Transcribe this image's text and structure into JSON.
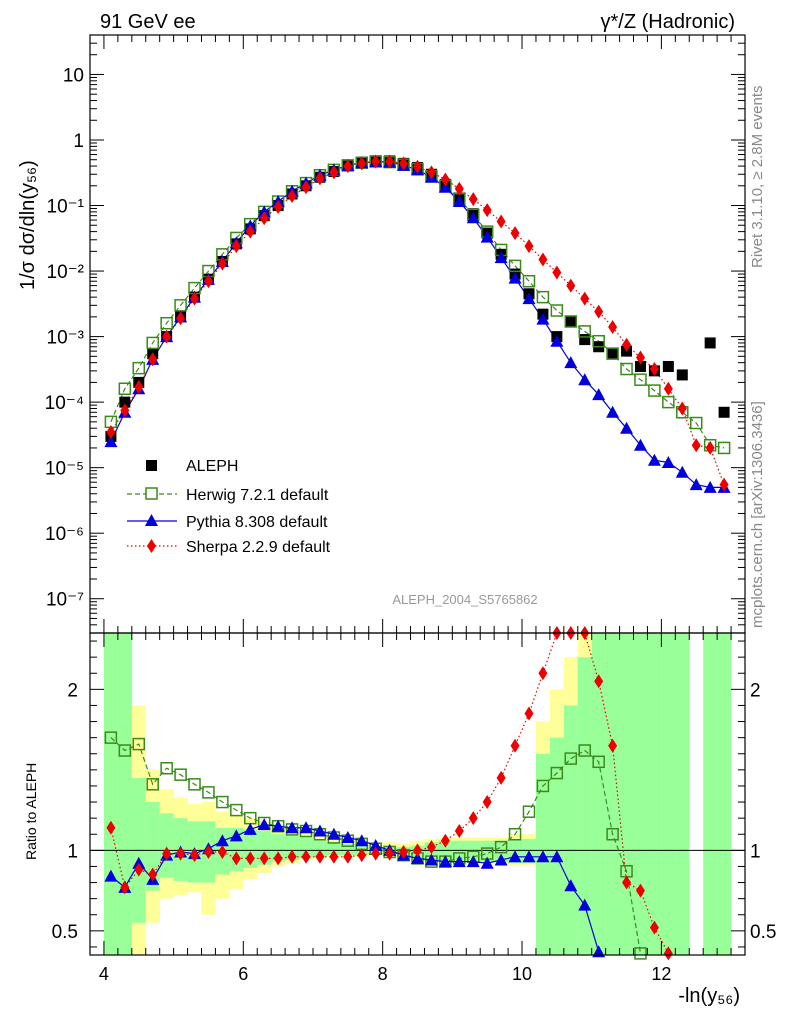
{
  "header": {
    "left_title": "91 GeV ee",
    "right_title": "γ*/Z (Hadronic)"
  },
  "side_labels": {
    "rivet": "Rivet 3.1.10, ≥ 2.8M events",
    "mcplots": "mcplots.cern.ch [arXiv:1306.3436]"
  },
  "watermark": "ALEPH_2004_S5765862",
  "colors": {
    "aleph": "#000000",
    "herwig": "#3a8a1a",
    "pythia": "#0000dd",
    "sherpa": "#ee0000",
    "band_inner": "#99ff99",
    "band_outer": "#ffff99"
  },
  "chart_data": [
    {
      "type": "scatter",
      "ylabel": "1/σ  dσ/dln(y₅₆)",
      "xlim": [
        3.8,
        13.2
      ],
      "ylim": [
        3e-08,
        40
      ],
      "log_y": true,
      "x_ticks": [
        4,
        6,
        8,
        10,
        12
      ],
      "y_tick_labels": [
        "10",
        "1",
        "10⁻¹",
        "10⁻²",
        "10⁻³",
        "10⁻⁴",
        "10⁻⁵",
        "10⁻⁶",
        "10⁻⁷"
      ],
      "legend_position": "bottom-left",
      "series": [
        {
          "name": "ALEPH",
          "style": "black-square",
          "x": [
            4.1,
            4.3,
            4.5,
            4.7,
            4.9,
            5.1,
            5.3,
            5.5,
            5.7,
            5.9,
            6.1,
            6.3,
            6.5,
            6.7,
            6.9,
            7.1,
            7.3,
            7.5,
            7.7,
            7.9,
            8.1,
            8.3,
            8.5,
            8.7,
            8.9,
            9.1,
            9.3,
            9.5,
            9.7,
            9.9,
            10.1,
            10.3,
            10.5,
            10.7,
            10.9,
            11.1,
            11.3,
            11.5,
            11.7,
            11.9,
            12.1,
            12.3,
            12.7,
            12.9
          ],
          "y": [
            3e-05,
            0.0001,
            0.0002,
            0.00055,
            0.001,
            0.002,
            0.004,
            0.0075,
            0.014,
            0.026,
            0.044,
            0.07,
            0.1,
            0.15,
            0.2,
            0.27,
            0.33,
            0.4,
            0.45,
            0.48,
            0.48,
            0.44,
            0.38,
            0.3,
            0.21,
            0.13,
            0.075,
            0.038,
            0.018,
            0.009,
            0.0045,
            0.0022,
            0.001,
            0.0017,
            0.0009,
            0.0007,
            0.00055,
            0.0006,
            0.00035,
            0.0003,
            0.00035,
            0.00026,
            0.0008,
            7e-05
          ]
        },
        {
          "name": "Herwig 7.2.1 default",
          "style": "green-open-square-dashed",
          "x": [
            4.1,
            4.3,
            4.5,
            4.7,
            4.9,
            5.1,
            5.3,
            5.5,
            5.7,
            5.9,
            6.1,
            6.3,
            6.5,
            6.7,
            6.9,
            7.1,
            7.3,
            7.5,
            7.7,
            7.9,
            8.1,
            8.3,
            8.5,
            8.7,
            8.9,
            9.1,
            9.3,
            9.5,
            9.7,
            9.9,
            10.1,
            10.3,
            10.5,
            10.7,
            10.9,
            11.1,
            11.3,
            11.5,
            11.7,
            11.9,
            12.1,
            12.3,
            12.5,
            12.7,
            12.9
          ],
          "y": [
            5e-05,
            0.00016,
            0.00033,
            0.0008,
            0.0016,
            0.003,
            0.0055,
            0.01,
            0.018,
            0.032,
            0.052,
            0.08,
            0.115,
            0.165,
            0.22,
            0.29,
            0.35,
            0.41,
            0.45,
            0.47,
            0.46,
            0.42,
            0.36,
            0.28,
            0.2,
            0.125,
            0.072,
            0.04,
            0.021,
            0.012,
            0.007,
            0.004,
            0.0025,
            0.0017,
            0.0012,
            0.00085,
            0.00055,
            0.00032,
            0.00022,
            0.00015,
            0.0001,
            7e-05,
            4.8e-05,
            2.2e-05,
            2e-05
          ]
        },
        {
          "name": "Pythia 8.308 default",
          "style": "blue-triangle-solid",
          "x": [
            4.1,
            4.3,
            4.5,
            4.7,
            4.9,
            5.1,
            5.3,
            5.5,
            5.7,
            5.9,
            6.1,
            6.3,
            6.5,
            6.7,
            6.9,
            7.1,
            7.3,
            7.5,
            7.7,
            7.9,
            8.1,
            8.3,
            8.5,
            8.7,
            8.9,
            9.1,
            9.3,
            9.5,
            9.7,
            9.9,
            10.1,
            10.3,
            10.5,
            10.7,
            10.9,
            11.1,
            11.3,
            11.5,
            11.7,
            11.9,
            12.1,
            12.3,
            12.5,
            12.7,
            12.9
          ],
          "y": [
            2.5e-05,
            7e-05,
            0.00016,
            0.00045,
            0.001,
            0.002,
            0.004,
            0.0075,
            0.014,
            0.027,
            0.049,
            0.08,
            0.115,
            0.165,
            0.22,
            0.29,
            0.35,
            0.41,
            0.45,
            0.47,
            0.46,
            0.41,
            0.35,
            0.27,
            0.19,
            0.115,
            0.065,
            0.033,
            0.016,
            0.0078,
            0.0038,
            0.00185,
            0.00085,
            0.0004,
            0.00022,
            0.00013,
            7e-05,
            4e-05,
            2.2e-05,
            1.3e-05,
            1.2e-05,
            8.5e-06,
            5.5e-06,
            5e-06,
            5e-06
          ]
        },
        {
          "name": "Sherpa 2.2.9 default",
          "style": "red-diamond-dotted",
          "x": [
            4.1,
            4.3,
            4.5,
            4.7,
            4.9,
            5.1,
            5.3,
            5.5,
            5.7,
            5.9,
            6.1,
            6.3,
            6.5,
            6.7,
            6.9,
            7.1,
            7.3,
            7.5,
            7.7,
            7.9,
            8.1,
            8.3,
            8.5,
            8.7,
            8.9,
            9.1,
            9.3,
            9.5,
            9.7,
            9.9,
            10.1,
            10.3,
            10.5,
            10.7,
            10.9,
            11.1,
            11.3,
            11.5,
            11.7,
            11.9,
            12.1,
            12.3,
            12.5,
            12.7,
            12.9
          ],
          "y": [
            3.5e-05,
            7.5e-05,
            0.00017,
            0.00045,
            0.001,
            0.0019,
            0.0038,
            0.007,
            0.013,
            0.024,
            0.04,
            0.064,
            0.095,
            0.14,
            0.19,
            0.26,
            0.32,
            0.4,
            0.44,
            0.47,
            0.47,
            0.44,
            0.39,
            0.32,
            0.25,
            0.18,
            0.125,
            0.085,
            0.057,
            0.038,
            0.024,
            0.015,
            0.0095,
            0.006,
            0.0038,
            0.0024,
            0.0014,
            0.00075,
            0.00048,
            0.00032,
            0.00016,
            8e-05,
            2.2e-05,
            2e-05,
            5.5e-06
          ]
        }
      ]
    },
    {
      "type": "line",
      "ylabel": "Ratio to ALEPH",
      "xlabel": "-ln(y₅₆)",
      "xlim": [
        3.8,
        13.2
      ],
      "ylim": [
        0.35,
        2.35
      ],
      "y_ticks": [
        0.5,
        1,
        2
      ],
      "y_tick_labels": [
        "0.5",
        "1",
        "2"
      ],
      "x_ticks": [
        4,
        6,
        8,
        10,
        12
      ],
      "x_tick_labels": [
        "4",
        "6",
        "8",
        "10",
        "12"
      ],
      "bands": {
        "x_edges": [
          4.0,
          4.2,
          4.4,
          4.6,
          4.8,
          5.0,
          5.2,
          5.4,
          5.6,
          5.8,
          6.0,
          6.2,
          6.4,
          6.6,
          6.8,
          7.0,
          7.2,
          7.4,
          7.6,
          7.8,
          8.0,
          8.2,
          8.4,
          8.6,
          8.8,
          9.0,
          9.2,
          9.4,
          9.6,
          9.8,
          10.0,
          10.2,
          10.4,
          10.6,
          10.8,
          11.0,
          11.2,
          11.4,
          11.6,
          11.8,
          12.0,
          12.2,
          12.4,
          12.6,
          12.8,
          13.0
        ],
        "inner_low": [
          0.35,
          0.35,
          0.55,
          0.75,
          0.83,
          0.81,
          0.8,
          0.8,
          0.85,
          0.87,
          0.89,
          0.91,
          0.93,
          0.94,
          0.95,
          0.96,
          0.97,
          0.97,
          0.97,
          0.98,
          0.98,
          0.96,
          0.95,
          0.93,
          0.93,
          0.93,
          0.93,
          0.93,
          0.93,
          0.92,
          0.92,
          0.35,
          0.35,
          0.35,
          0.35,
          0.35,
          0.35,
          0.35,
          0.35,
          0.35,
          0.35,
          0.35,
          null,
          0.35,
          0.35
        ],
        "inner_high": [
          2.35,
          2.35,
          1.45,
          1.3,
          1.23,
          1.2,
          1.18,
          1.18,
          1.14,
          1.14,
          1.13,
          1.12,
          1.1,
          1.09,
          1.08,
          1.06,
          1.05,
          1.04,
          1.03,
          1.02,
          1.02,
          1.02,
          1.03,
          1.05,
          1.06,
          1.06,
          1.06,
          1.06,
          1.06,
          1.07,
          1.07,
          1.6,
          1.7,
          1.9,
          2.2,
          2.35,
          2.35,
          2.35,
          2.35,
          2.35,
          2.35,
          2.35,
          null,
          2.35,
          2.35
        ],
        "outer_low": [
          0.35,
          0.35,
          0.35,
          0.55,
          0.7,
          0.72,
          0.74,
          0.6,
          0.7,
          0.76,
          0.82,
          0.86,
          0.9,
          0.92,
          0.94,
          0.95,
          0.96,
          0.96,
          0.96,
          0.97,
          0.97,
          0.94,
          0.93,
          0.92,
          0.92,
          0.92,
          0.92,
          0.92,
          0.92,
          0.91,
          0.91,
          0.35,
          0.35,
          0.35,
          0.35,
          0.35,
          0.35,
          0.35,
          0.35,
          0.35,
          0.35,
          0.35,
          null,
          0.35,
          0.35
        ],
        "outer_high": [
          2.35,
          2.35,
          1.9,
          1.5,
          1.38,
          1.33,
          1.29,
          1.3,
          1.24,
          1.22,
          1.2,
          1.18,
          1.15,
          1.13,
          1.11,
          1.09,
          1.07,
          1.06,
          1.05,
          1.04,
          1.05,
          1.04,
          1.06,
          1.07,
          1.08,
          1.08,
          1.08,
          1.08,
          1.08,
          1.1,
          1.1,
          1.8,
          2.0,
          2.2,
          2.35,
          2.35,
          2.35,
          2.35,
          2.35,
          2.35,
          2.35,
          2.35,
          null,
          2.35,
          2.35
        ]
      },
      "series": [
        {
          "name": "Herwig 7.2.1 default",
          "x": [
            4.1,
            4.3,
            4.5,
            4.7,
            4.9,
            5.1,
            5.3,
            5.5,
            5.7,
            5.9,
            6.1,
            6.3,
            6.5,
            6.7,
            6.9,
            7.1,
            7.3,
            7.5,
            7.7,
            7.9,
            8.1,
            8.3,
            8.5,
            8.7,
            8.9,
            9.1,
            9.3,
            9.5,
            9.7,
            9.9,
            10.1,
            10.3,
            10.5,
            10.7,
            10.9,
            11.1,
            11.3,
            11.5,
            11.7
          ],
          "y": [
            1.7,
            1.62,
            1.66,
            1.41,
            1.51,
            1.47,
            1.41,
            1.36,
            1.3,
            1.25,
            1.2,
            1.17,
            1.15,
            1.13,
            1.12,
            1.1,
            1.08,
            1.06,
            1.04,
            1.01,
            0.99,
            0.97,
            0.95,
            0.93,
            0.93,
            0.95,
            0.96,
            0.98,
            1.02,
            1.1,
            1.24,
            1.4,
            1.48,
            1.57,
            1.62,
            1.55,
            1.1,
            0.87,
            0.36
          ]
        },
        {
          "name": "Pythia 8.308 default",
          "x": [
            4.1,
            4.3,
            4.5,
            4.7,
            4.9,
            5.1,
            5.3,
            5.5,
            5.7,
            5.9,
            6.1,
            6.3,
            6.5,
            6.7,
            6.9,
            7.1,
            7.3,
            7.5,
            7.7,
            7.9,
            8.1,
            8.3,
            8.5,
            8.7,
            8.9,
            9.1,
            9.3,
            9.5,
            9.7,
            9.9,
            10.1,
            10.3,
            10.5,
            10.7,
            10.9,
            11.1
          ],
          "y": [
            0.84,
            0.77,
            0.92,
            0.82,
            0.97,
            0.99,
            0.98,
            1.01,
            1.06,
            1.09,
            1.13,
            1.16,
            1.15,
            1.14,
            1.14,
            1.12,
            1.1,
            1.08,
            1.06,
            1.03,
            1.0,
            0.97,
            0.95,
            0.94,
            0.93,
            0.93,
            0.93,
            0.92,
            0.94,
            0.96,
            0.96,
            0.96,
            0.96,
            0.78,
            0.66,
            0.37
          ]
        },
        {
          "name": "Sherpa 2.2.9 default",
          "x": [
            4.1,
            4.3,
            4.5,
            4.7,
            4.9,
            5.1,
            5.3,
            5.5,
            5.7,
            5.9,
            6.1,
            6.3,
            6.5,
            6.7,
            6.9,
            7.1,
            7.3,
            7.5,
            7.7,
            7.9,
            8.1,
            8.3,
            8.5,
            8.7,
            8.9,
            9.1,
            9.3,
            9.5,
            9.7,
            9.9,
            10.1,
            10.3,
            10.5,
            10.7,
            10.9,
            11.1,
            11.3,
            11.5,
            11.7,
            11.9,
            12.1
          ],
          "y": [
            1.14,
            0.77,
            0.88,
            0.85,
            0.98,
            0.98,
            0.97,
            0.99,
            0.99,
            0.95,
            0.95,
            0.95,
            0.95,
            0.96,
            0.96,
            0.96,
            0.96,
            0.96,
            0.97,
            0.98,
            0.98,
            0.99,
            1.0,
            1.02,
            1.06,
            1.12,
            1.2,
            1.3,
            1.45,
            1.65,
            1.85,
            2.1,
            2.35,
            2.35,
            2.35,
            2.05,
            1.65,
            0.8,
            0.75,
            0.52,
            0.36
          ]
        }
      ]
    }
  ]
}
